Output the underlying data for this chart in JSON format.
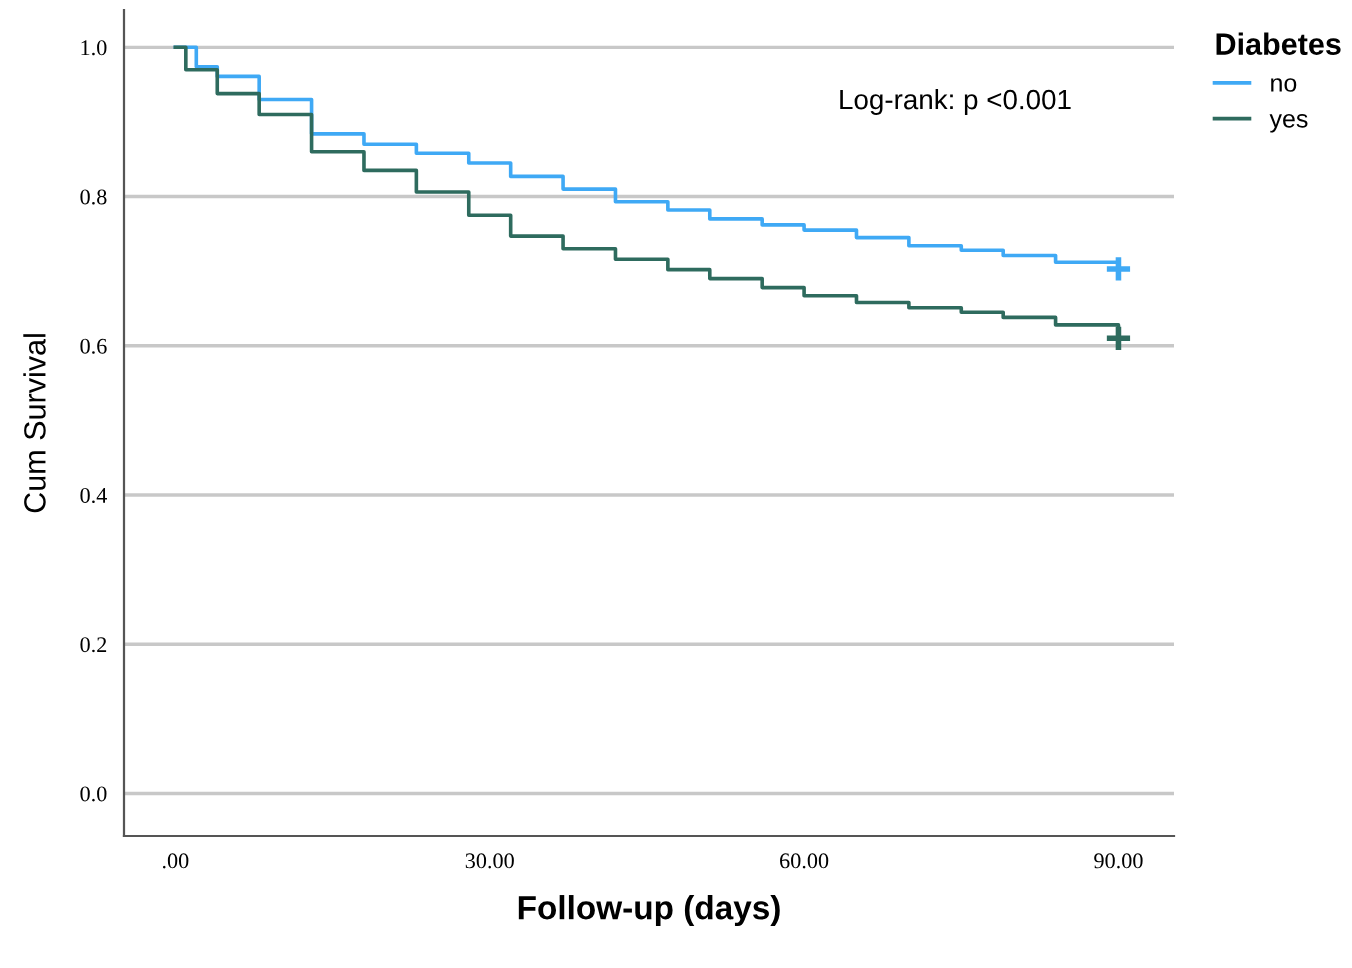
{
  "chart_data": {
    "type": "step",
    "xlabel": "Follow-up (days)",
    "ylabel": "Cum Survival",
    "legend_title": "Diabetes",
    "legend": "top right",
    "grid": "y",
    "annotations": [
      "Log-rank: p <0.001"
    ],
    "xlim": [
      -4.9,
      95.3
    ],
    "ylim": [
      -0.057,
      1.05
    ],
    "xticks": [
      {
        "value": 0,
        "label": ".00"
      },
      {
        "value": 30,
        "label": "30.00"
      },
      {
        "value": 60,
        "label": "60.00"
      },
      {
        "value": 90,
        "label": "90.00"
      }
    ],
    "yticks": [
      {
        "value": 0,
        "label": "0.0"
      },
      {
        "value": 0.2,
        "label": "0.2"
      },
      {
        "value": 0.4,
        "label": "0.4"
      },
      {
        "value": 0.6,
        "label": "0.6"
      },
      {
        "value": 0.8,
        "label": "0.8"
      },
      {
        "value": 1.0,
        "label": "1.0"
      }
    ],
    "series": [
      {
        "name": "no",
        "color": "#3fa9f5",
        "x": [
          0,
          2,
          4,
          8,
          13,
          18,
          23,
          28,
          32,
          37,
          42,
          47,
          51,
          56,
          60,
          65,
          70,
          75,
          79,
          84,
          90
        ],
        "values": [
          1.0,
          0.974,
          0.961,
          0.93,
          0.884,
          0.87,
          0.858,
          0.845,
          0.827,
          0.81,
          0.793,
          0.782,
          0.77,
          0.762,
          0.755,
          0.745,
          0.734,
          0.728,
          0.721,
          0.712,
          0.703
        ]
      },
      {
        "name": "yes",
        "color": "#2e6b5e",
        "x": [
          0,
          1,
          4,
          8,
          13,
          18,
          23,
          28,
          32,
          37,
          42,
          47,
          51,
          56,
          60,
          65,
          70,
          75,
          79,
          84,
          90
        ],
        "values": [
          1.0,
          0.97,
          0.938,
          0.91,
          0.86,
          0.835,
          0.806,
          0.775,
          0.747,
          0.73,
          0.716,
          0.702,
          0.69,
          0.678,
          0.667,
          0.658,
          0.651,
          0.645,
          0.638,
          0.628,
          0.61
        ]
      },
      {
        "type": "scatter",
        "marker": "cross",
        "color": "#3fa9f5",
        "x": [
          90
        ],
        "values": [
          0.703
        ]
      },
      {
        "type": "scatter",
        "marker": "cross",
        "color": "#2e6b5e",
        "x": [
          90
        ],
        "values": [
          0.61
        ]
      }
    ]
  }
}
